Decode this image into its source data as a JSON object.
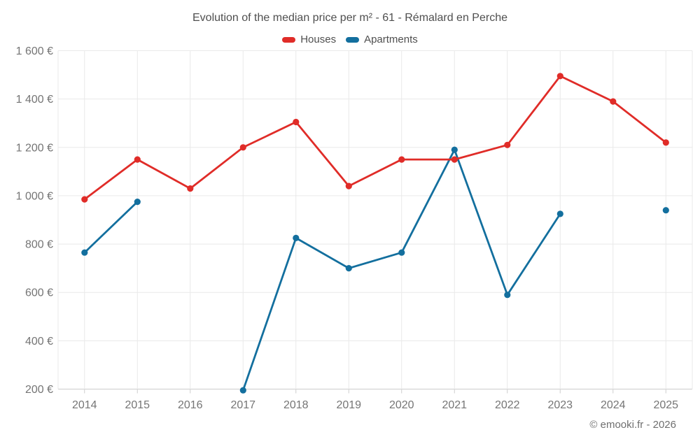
{
  "page": {
    "title": "Evolution of the median price per m² - 61 - Rémalard en Perche",
    "copyright": "© emooki.fr - 2026"
  },
  "legend": {
    "items": [
      {
        "label": "Houses",
        "color": "#e02c28"
      },
      {
        "label": "Apartments",
        "color": "#136f9e"
      }
    ]
  },
  "chart_data": {
    "type": "line",
    "title": "Evolution of the median price per m² - 61 - Rémalard en Perche",
    "categories": [
      2014,
      2015,
      2016,
      2017,
      2018,
      2019,
      2020,
      2021,
      2022,
      2023,
      2024,
      2025
    ],
    "xtick_labels": [
      "2014",
      "2015",
      "2016",
      "2017",
      "2018",
      "2019",
      "2020",
      "2021",
      "2022",
      "2023",
      "2024",
      "2025"
    ],
    "series": [
      {
        "name": "Houses",
        "color": "#e02c28",
        "values": [
          985,
          1150,
          1030,
          1200,
          1305,
          1040,
          1150,
          1150,
          1210,
          1495,
          1390,
          1220
        ]
      },
      {
        "name": "Apartments",
        "color": "#136f9e",
        "values": [
          765,
          975,
          null,
          195,
          825,
          700,
          765,
          1190,
          590,
          925,
          null,
          940
        ]
      }
    ],
    "ylabel": "",
    "xlabel": "",
    "y_unit": "€",
    "ylim": [
      200,
      1600
    ],
    "ytick_step": 200,
    "ytick_labels": [
      "200 €",
      "400 €",
      "600 €",
      "800 €",
      "1 000 €",
      "1 200 €",
      "1 400 €",
      "1 600 €"
    ],
    "grid": true,
    "legend_position": "top",
    "notes": "Apartments has no data for 2016 and 2024; 2025 apartment point is isolated"
  },
  "colors": {
    "grid": "#e9e9e9",
    "axis_line": "#cdcdcd",
    "tick_text": "#757575",
    "title_text": "#4f4f4f"
  }
}
